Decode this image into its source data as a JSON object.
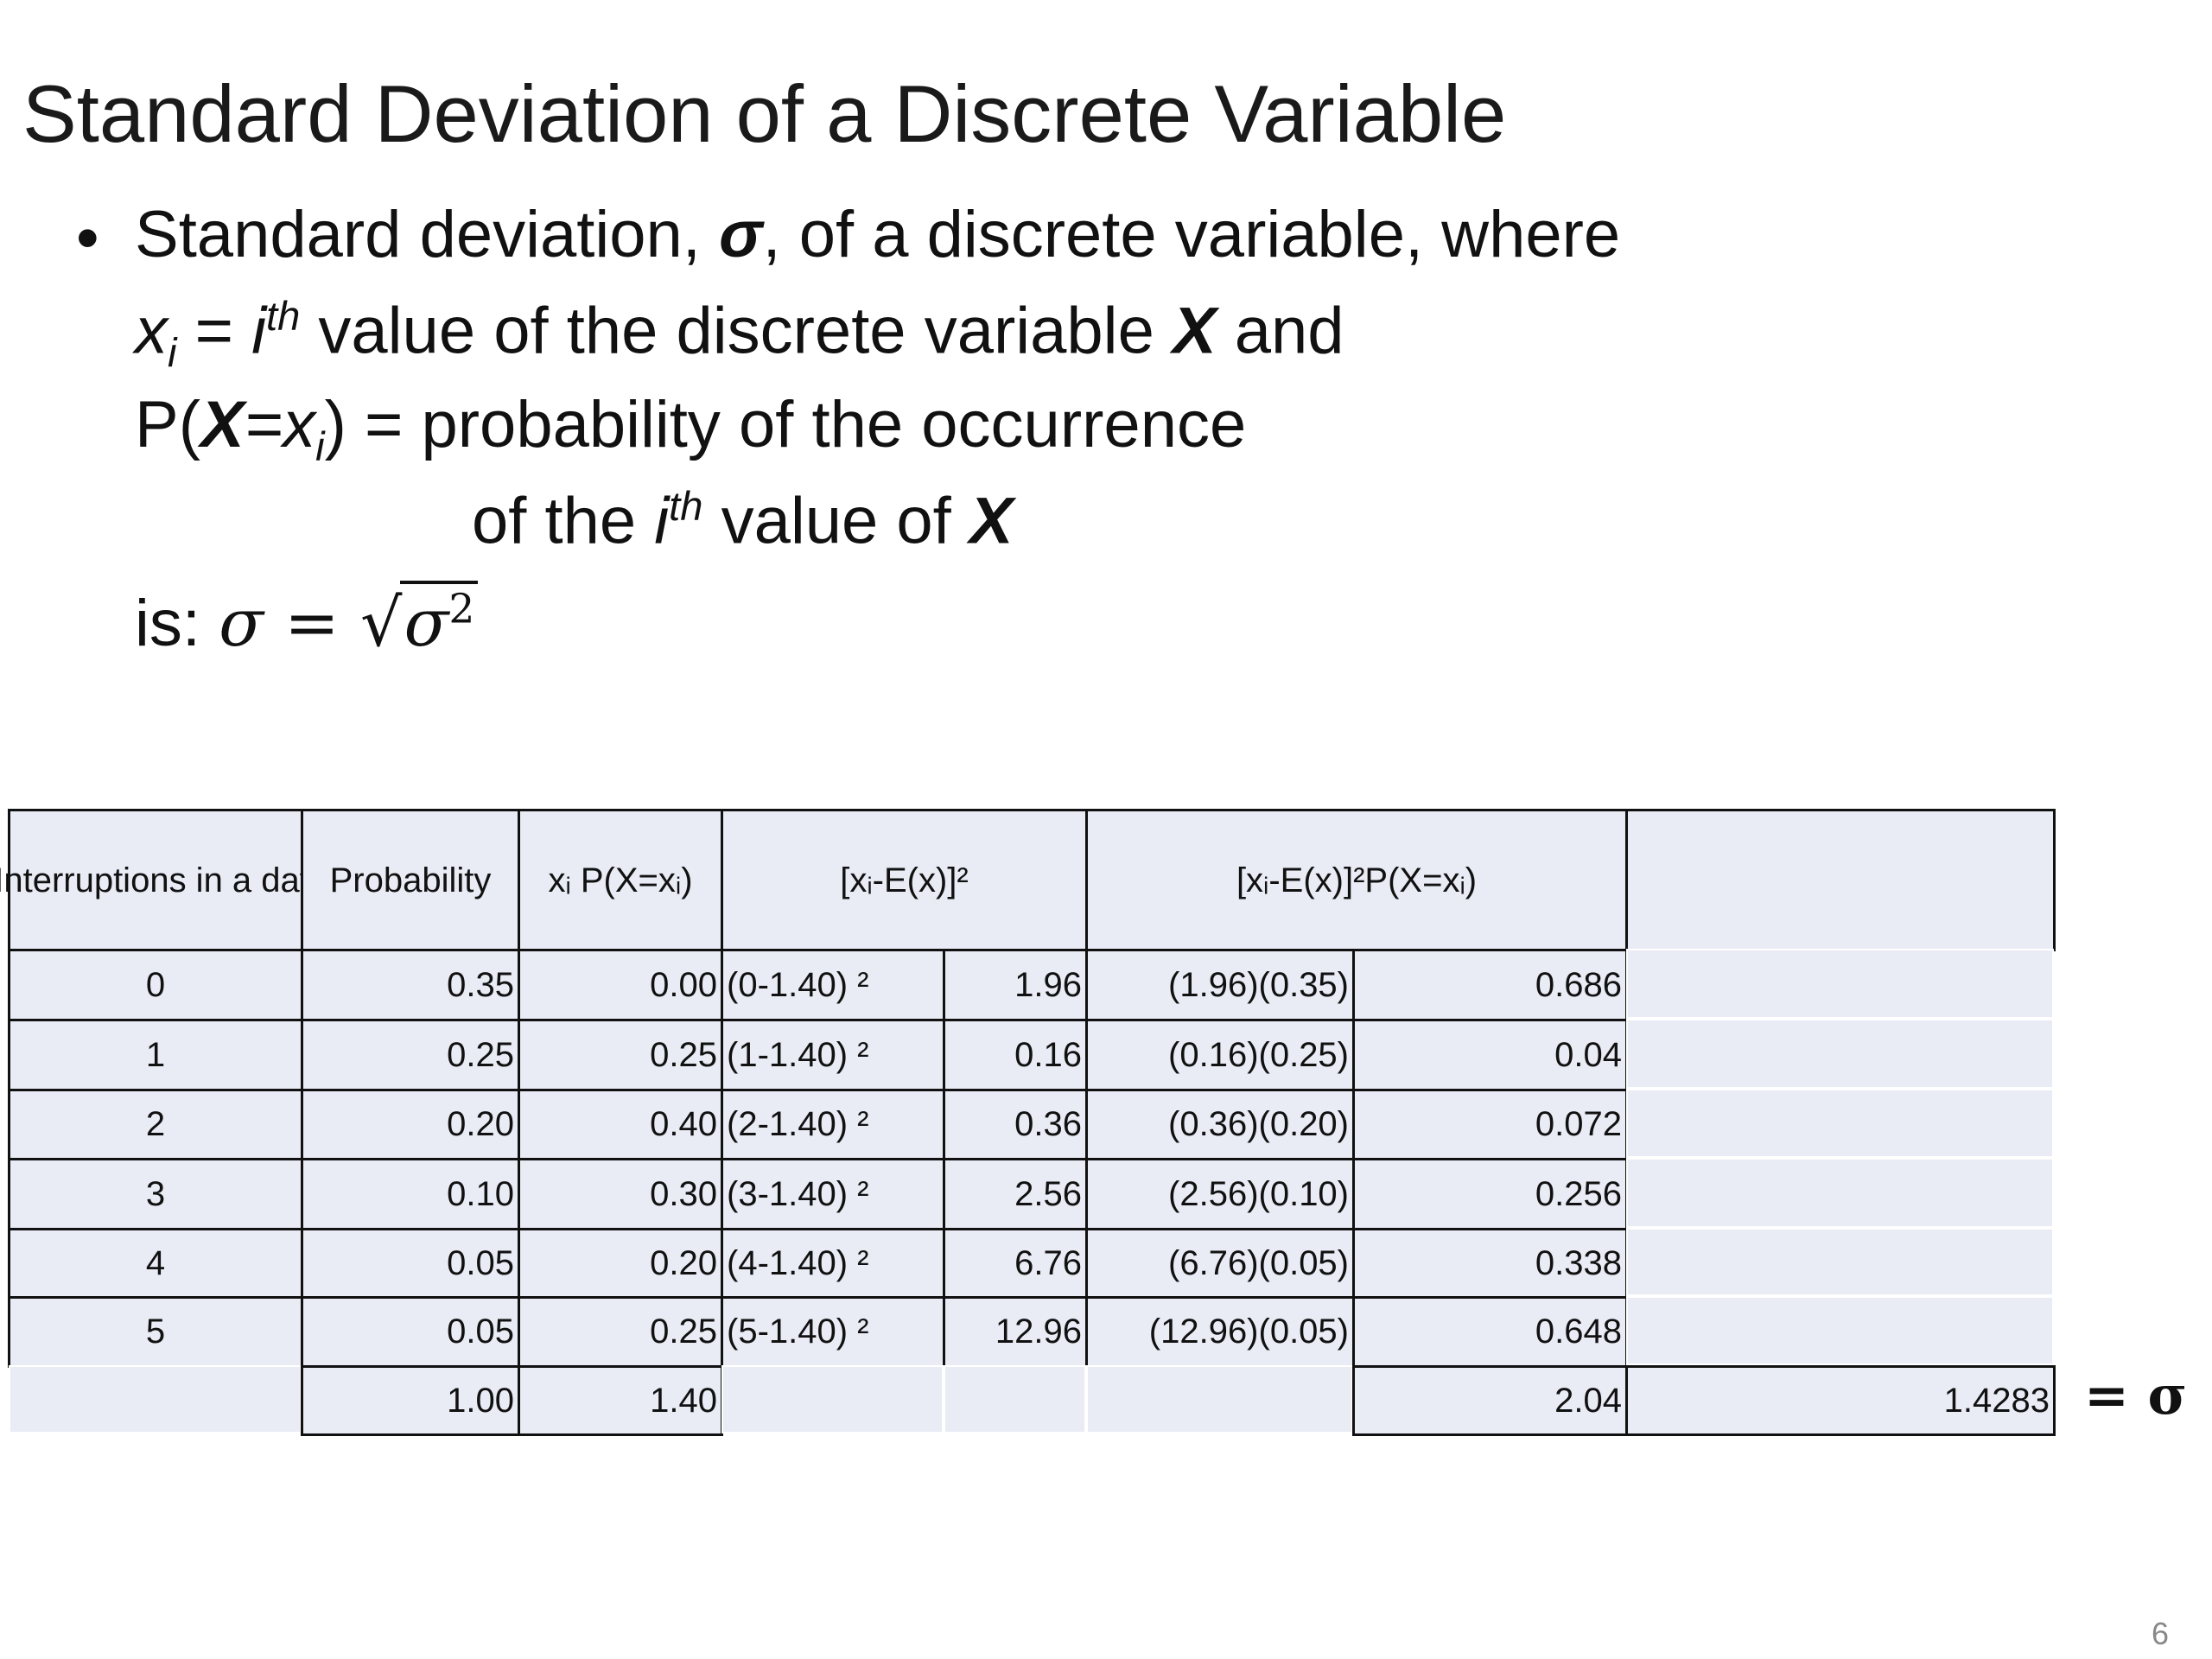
{
  "title": "Standard Deviation of a Discrete Variable",
  "bullet": {
    "l1a": "Standard deviation, ",
    "l1b": "σ",
    "l1c": ", of a discrete variable, where",
    "l2a": "x",
    "l2b": "i",
    "l2c": " = ",
    "l2d": "i",
    "l2e": "th",
    "l2f": " value of the discrete variable ",
    "l2g": "X",
    "l2h": " and",
    "l3a": "P(",
    "l3b": "X",
    "l3c": "=x",
    "l3d": "i",
    "l3e": ") = probability of the occurrence",
    "l4a": "of the ",
    "l4b": "i",
    "l4c": "th",
    "l4d": " value of ",
    "l4e": "X",
    "l5a": "is:  ",
    "l5b": "σ = √",
    "l5c": "σ",
    "l5d": "2"
  },
  "table": {
    "headers": [
      "Interruptions in a day",
      "Probability",
      "xᵢ P(X=xᵢ)",
      "[xᵢ-E(x)]²",
      "[xᵢ-E(x)]²P(X=xᵢ)",
      ""
    ],
    "rows": [
      [
        "0",
        "0.35",
        "0.00",
        "(0-1.40) ²",
        "1.96",
        "(1.96)(0.35)",
        "0.686",
        ""
      ],
      [
        "1",
        "0.25",
        "0.25",
        "(1-1.40) ²",
        "0.16",
        "(0.16)(0.25)",
        "0.04",
        ""
      ],
      [
        "2",
        "0.20",
        "0.40",
        "(2-1.40) ²",
        "0.36",
        "(0.36)(0.20)",
        "0.072",
        ""
      ],
      [
        "3",
        "0.10",
        "0.30",
        "(3-1.40) ²",
        "2.56",
        "(2.56)(0.10)",
        "0.256",
        ""
      ],
      [
        "4",
        "0.05",
        "0.20",
        "(4-1.40) ²",
        "6.76",
        "(6.76)(0.05)",
        "0.338",
        ""
      ],
      [
        "5",
        "0.05",
        "0.25",
        "(5-1.40) ²",
        "12.96",
        "(12.96)(0.05)",
        "0.648",
        ""
      ]
    ],
    "totals": [
      "",
      "1.00",
      "1.40",
      "",
      "",
      "",
      "2.04",
      "1.4283"
    ],
    "sigma_label": "= σ",
    "cell_bg": "#e9ebf5"
  },
  "page_number": "6"
}
